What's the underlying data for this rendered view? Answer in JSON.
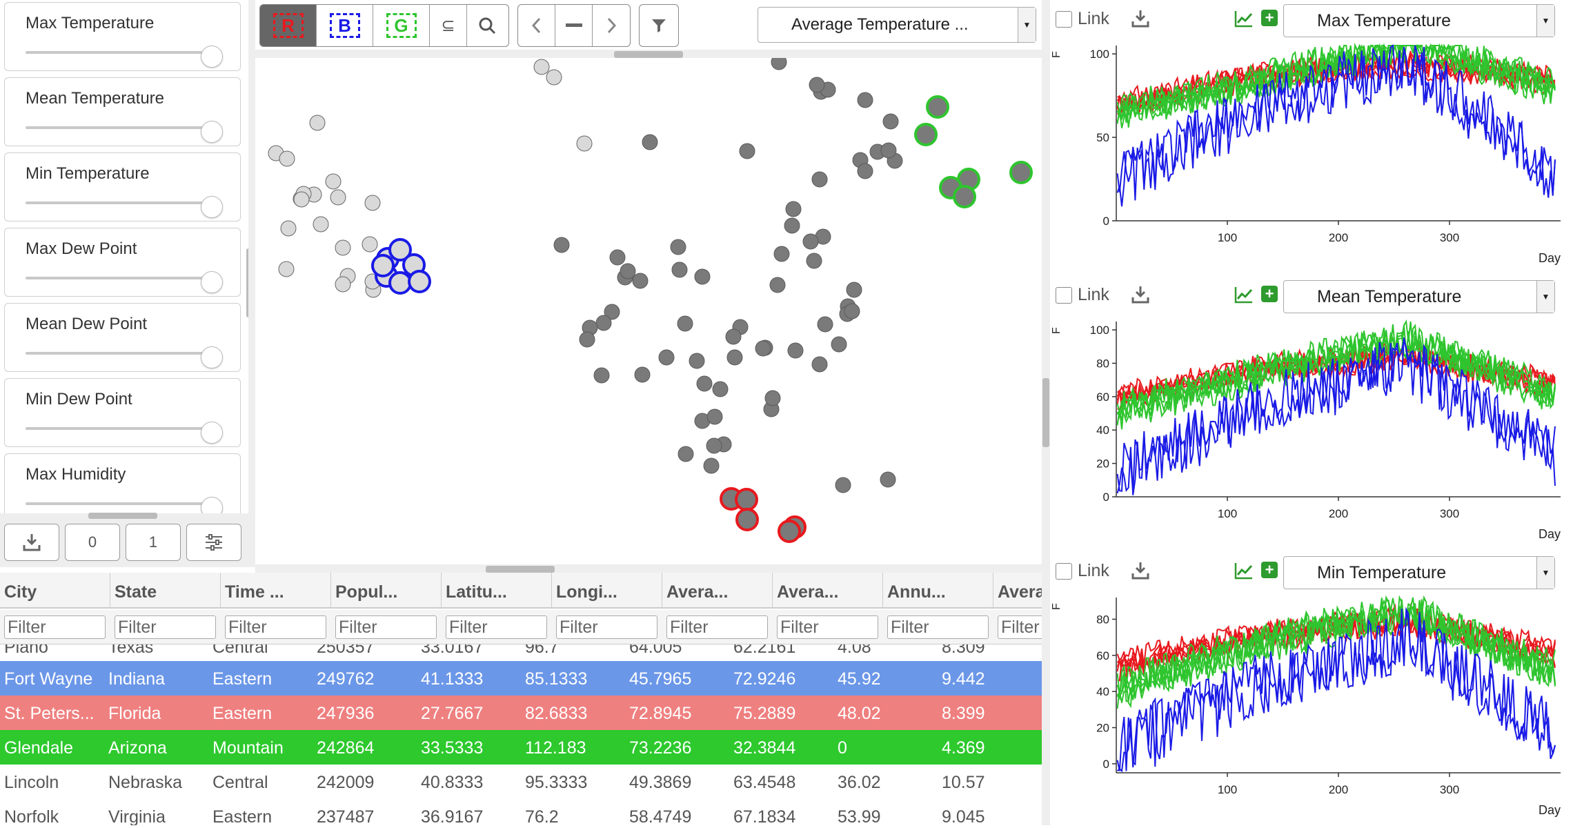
{
  "sidebar": {
    "sliders": [
      {
        "label": "Max Temperature",
        "value": 1
      },
      {
        "label": "Mean Temperature",
        "value": 1
      },
      {
        "label": "Min Temperature",
        "value": 1
      },
      {
        "label": "Max Dew Point",
        "value": 1
      },
      {
        "label": "Mean Dew Point",
        "value": 1
      },
      {
        "label": "Min Dew Point",
        "value": 1
      },
      {
        "label": "Max Humidity",
        "value": 1
      }
    ],
    "buttons": {
      "zero": "0",
      "one": "1"
    }
  },
  "toolbar": {
    "r": "R",
    "b": "B",
    "g": "G",
    "subset": "⊆",
    "dropdown": "Average Temperature ..."
  },
  "colors": {
    "red": "#e8191e",
    "blue": "#1a1ae6",
    "green": "#2ec52e",
    "row_blue": "#6b97e8",
    "row_red": "#ef8080",
    "row_green": "#2dc92d",
    "point": "#7a7a7a",
    "point_light": "#d9d9d9"
  },
  "table": {
    "columns": [
      "City",
      "State",
      "Time ...",
      "Popul...",
      "Latitu...",
      "Longi...",
      "Avera...",
      "Avera...",
      "Annu...",
      "Avera"
    ],
    "filter_placeholder": "Filter",
    "rows": [
      {
        "cells": [
          "Plano",
          "Texas",
          "Central",
          "250357",
          "33.0167",
          "96.7",
          "64.005",
          "62.2161",
          "4.08",
          "8.309"
        ],
        "highlight": "none"
      },
      {
        "cells": [
          "Fort Wayne",
          "Indiana",
          "Eastern",
          "249762",
          "41.1333",
          "85.1333",
          "45.7965",
          "72.9246",
          "45.92",
          "9.442"
        ],
        "highlight": "blue"
      },
      {
        "cells": [
          "St. Peters...",
          "Florida",
          "Eastern",
          "247936",
          "27.7667",
          "82.6833",
          "72.8945",
          "75.2889",
          "48.02",
          "8.399"
        ],
        "highlight": "red"
      },
      {
        "cells": [
          "Glendale",
          "Arizona",
          "Mountain",
          "242864",
          "33.5333",
          "112.183",
          "73.2236",
          "32.3844",
          "0",
          "4.369"
        ],
        "highlight": "green"
      },
      {
        "cells": [
          "Lincoln",
          "Nebraska",
          "Central",
          "242009",
          "40.8333",
          "95.3333",
          "49.3869",
          "63.4548",
          "36.02",
          "10.57"
        ],
        "highlight": "none"
      },
      {
        "cells": [
          "Norfolk",
          "Virginia",
          "Eastern",
          "237487",
          "36.9167",
          "76.2",
          "58.4749",
          "67.1834",
          "53.99",
          "9.045"
        ],
        "highlight": "none"
      }
    ]
  },
  "timeseries": [
    {
      "link": "Link",
      "variable": "Max Temperature",
      "ylabel": "F",
      "xlabel": "Day",
      "yticks": [
        "100",
        "50",
        "0"
      ],
      "ytick_values": [
        100,
        50,
        0
      ],
      "ylim": [
        0,
        105
      ],
      "xticks": [
        "100",
        "200",
        "300"
      ],
      "xtick_values": [
        100,
        200,
        300
      ],
      "xlim": [
        0,
        400
      ],
      "series": {
        "red": [
          70,
          88,
          95,
          85
        ],
        "green": [
          65,
          85,
          108,
          80
        ],
        "blue": [
          25,
          70,
          95,
          30
        ]
      }
    },
    {
      "link": "Link",
      "variable": "Mean Temperature",
      "ylabel": "F",
      "xlabel": "Day",
      "yticks": [
        "100",
        "80",
        "60",
        "40",
        "20",
        "0"
      ],
      "ytick_values": [
        100,
        80,
        60,
        40,
        20,
        0
      ],
      "ylim": [
        0,
        105
      ],
      "xticks": [
        "100",
        "200",
        "300"
      ],
      "xtick_values": [
        100,
        200,
        300
      ],
      "xlim": [
        0,
        400
      ],
      "series": {
        "red": [
          60,
          78,
          85,
          68
        ],
        "green": [
          52,
          75,
          95,
          62
        ],
        "blue": [
          15,
          55,
          80,
          25
        ]
      }
    },
    {
      "link": "Link",
      "variable": "Min Temperature",
      "ylabel": "F",
      "xlabel": "Day",
      "yticks": [
        "80",
        "60",
        "40",
        "20",
        "0"
      ],
      "ytick_values": [
        80,
        60,
        40,
        20,
        0
      ],
      "ylim": [
        -5,
        92
      ],
      "xticks": [
        "100",
        "200",
        "300"
      ],
      "xtick_values": [
        100,
        200,
        300
      ],
      "xlim": [
        0,
        400
      ],
      "series": {
        "red": [
          55,
          72,
          80,
          62
        ],
        "green": [
          42,
          68,
          85,
          52
        ],
        "blue": [
          8,
          45,
          70,
          18
        ]
      }
    }
  ]
}
